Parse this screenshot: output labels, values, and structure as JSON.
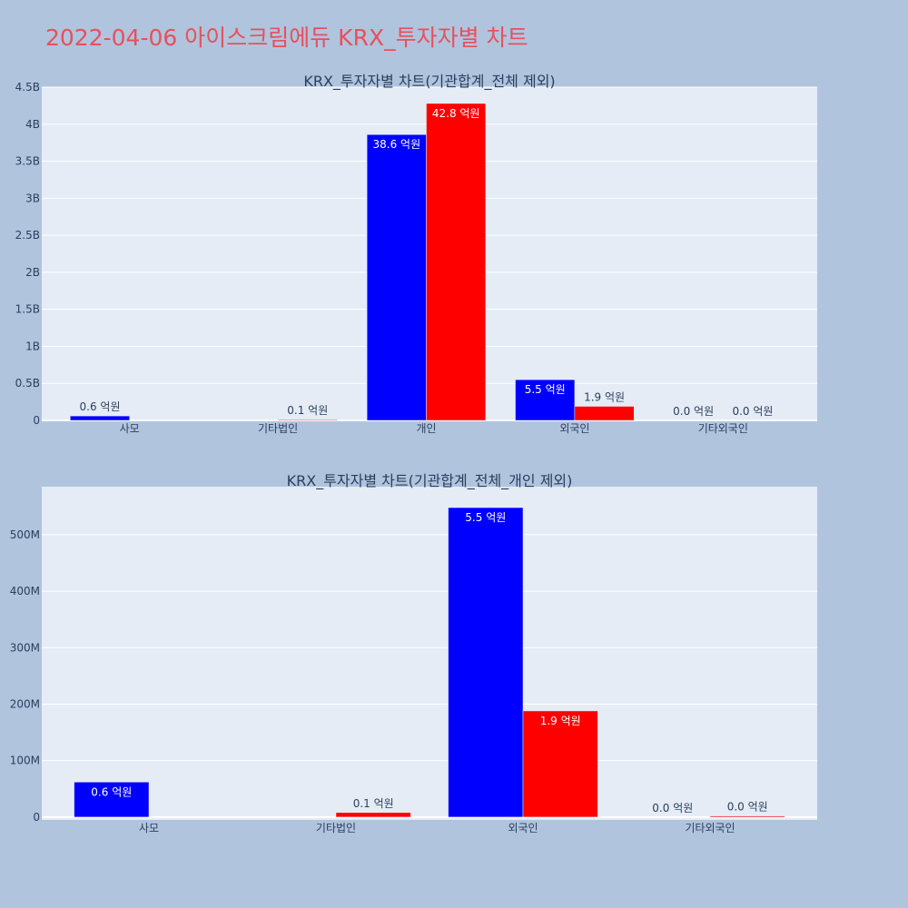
{
  "page_title": "2022-04-06 아이스크림에듀 KRX_투자자별 차트",
  "colors": {
    "background": "#b0c4de",
    "plot_bg": "#e5ecf6",
    "title": "#e8505b",
    "series_a": "#0000ff",
    "series_b": "#ff0000",
    "text": "#2a3f5f"
  },
  "chart_data": [
    {
      "type": "bar",
      "title": "KRX_투자자별 차트(기관합계_전체 제외)",
      "categories": [
        "사모",
        "기타법인",
        "개인",
        "외국인",
        "기타외국인"
      ],
      "series": [
        {
          "color": "#0000ff",
          "values": [
            60000000,
            0,
            3860000000,
            550000000,
            0
          ],
          "labels": [
            "0.6 억원",
            "",
            "38.6 억원",
            "5.5 억원",
            "0.0 억원"
          ]
        },
        {
          "color": "#ff0000",
          "values": [
            0,
            10000000,
            4280000000,
            190000000,
            0
          ],
          "labels": [
            "",
            "0.1 억원",
            "42.8 억원",
            "1.9 억원",
            "0.0 억원"
          ]
        }
      ],
      "ylim": [
        0,
        4500000000
      ],
      "yticks": [
        0,
        500000000,
        1000000000,
        1500000000,
        2000000000,
        2500000000,
        3000000000,
        3500000000,
        4000000000,
        4500000000
      ],
      "ytick_labels": [
        "0",
        "0.5B",
        "1B",
        "1.5B",
        "2B",
        "2.5B",
        "3B",
        "3.5B",
        "4B",
        "4.5B"
      ],
      "grid": true
    },
    {
      "type": "bar",
      "title": "KRX_투자자별 차트(기관합계_전체_개인 제외)",
      "categories": [
        "사모",
        "기타법인",
        "외국인",
        "기타외국인"
      ],
      "series": [
        {
          "color": "#0000ff",
          "values": [
            62000000,
            0,
            548000000,
            0
          ],
          "labels": [
            "0.6 억원",
            "",
            "5.5 억원",
            "0.0 억원"
          ]
        },
        {
          "color": "#ff0000",
          "values": [
            0,
            8000000,
            188000000,
            2000000
          ],
          "labels": [
            "",
            "0.1 억원",
            "1.9 억원",
            "0.0 억원"
          ]
        }
      ],
      "ylim": [
        -5000000,
        585000000
      ],
      "yticks": [
        0,
        100000000,
        200000000,
        300000000,
        400000000,
        500000000
      ],
      "ytick_labels": [
        "0",
        "100M",
        "200M",
        "300M",
        "400M",
        "500M"
      ],
      "grid": true
    }
  ]
}
